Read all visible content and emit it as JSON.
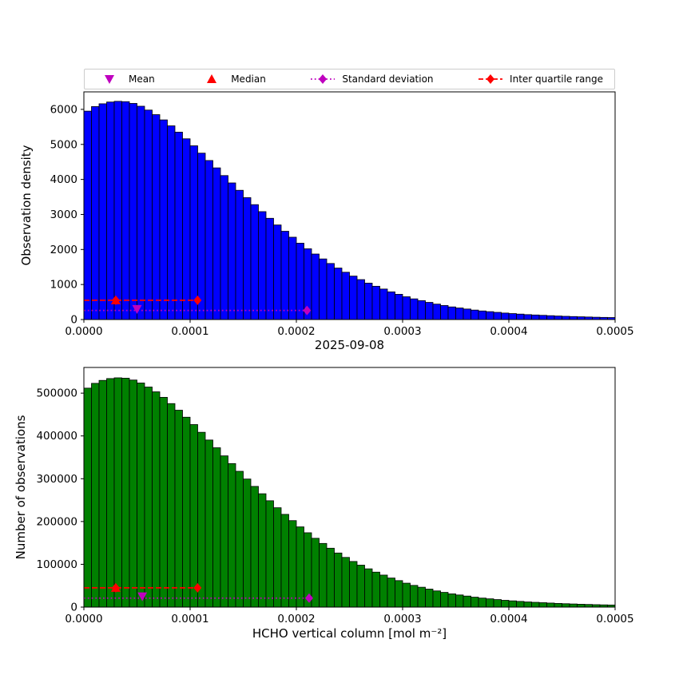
{
  "figure": {
    "date_title": "2025-09-08",
    "background": "#ffffff"
  },
  "colors": {
    "bar_top": "#0000ff",
    "bar_bottom": "#008000",
    "bar_edge": "#000000",
    "mean": "#bf00bf",
    "median": "#ff0000",
    "std": "#bf00bf",
    "iqr": "#ff0000",
    "legend_border": "#cccccc",
    "axis": "#000000"
  },
  "legend": {
    "items": [
      {
        "label": "Mean",
        "marker": "triangle-down",
        "line": "none",
        "color": "#bf00bf"
      },
      {
        "label": "Median",
        "marker": "triangle-up",
        "line": "none",
        "color": "#ff0000"
      },
      {
        "label": "Standard deviation",
        "marker": "diamond",
        "line": "dotted",
        "color": "#bf00bf"
      },
      {
        "label": "Inter quartile range",
        "marker": "diamond",
        "line": "dashed",
        "color": "#ff0000"
      }
    ]
  },
  "chart_data": [
    {
      "type": "bar",
      "name": "observation-density-histogram",
      "ylabel": "Observation density",
      "xlabel": "",
      "xlim": [
        0,
        0.0005
      ],
      "ylim": [
        0,
        6500
      ],
      "bar_color": "#0000ff",
      "edge_color": "#000000",
      "xtick_values": [
        0,
        0.0001,
        0.0002,
        0.0003,
        0.0004,
        0.0005
      ],
      "xtick_labels": [
        "0.0000",
        "0.0001",
        "0.0002",
        "0.0003",
        "0.0004",
        "0.0005"
      ],
      "ytick_values": [
        0,
        1000,
        2000,
        3000,
        4000,
        5000,
        6000
      ],
      "ytick_labels": [
        "0",
        "1000",
        "2000",
        "3000",
        "4000",
        "5000",
        "6000"
      ],
      "values": [
        5950,
        6080,
        6160,
        6210,
        6230,
        6220,
        6170,
        6090,
        5980,
        5850,
        5700,
        5530,
        5350,
        5160,
        4960,
        4750,
        4540,
        4330,
        4110,
        3900,
        3690,
        3480,
        3280,
        3080,
        2890,
        2700,
        2520,
        2350,
        2180,
        2020,
        1870,
        1730,
        1600,
        1470,
        1350,
        1240,
        1140,
        1040,
        950,
        870,
        790,
        720,
        650,
        590,
        540,
        490,
        440,
        400,
        360,
        330,
        300,
        270,
        245,
        225,
        205,
        185,
        170,
        155,
        140,
        130,
        120,
        110,
        100,
        92,
        85,
        78,
        72,
        66,
        61,
        57
      ],
      "markers": {
        "mean": {
          "x": 5e-05,
          "y": 300,
          "color": "#bf00bf"
        },
        "median": {
          "x": 3e-05,
          "y": 550,
          "color": "#ff0000"
        },
        "std": {
          "x_start": 0,
          "x_end": 0.00021,
          "y": 260,
          "marker_x": [
            0.00021
          ],
          "color": "#bf00bf"
        },
        "iqr": {
          "x_start": 0,
          "x_end": 0.000107,
          "y": 550,
          "marker_x": [
            3e-05,
            0.000107
          ],
          "color": "#ff0000"
        }
      }
    },
    {
      "type": "bar",
      "name": "observation-count-histogram",
      "ylabel": "Number of observations",
      "xlabel": "HCHO vertical column [mol m⁻²]",
      "xlim": [
        0,
        0.0005
      ],
      "ylim": [
        0,
        560000
      ],
      "bar_color": "#008000",
      "edge_color": "#000000",
      "xtick_values": [
        0,
        0.0001,
        0.0002,
        0.0003,
        0.0004,
        0.0005
      ],
      "xtick_labels": [
        "0.0000",
        "0.0001",
        "0.0002",
        "0.0003",
        "0.0004",
        "0.0005"
      ],
      "ytick_values": [
        0,
        100000,
        200000,
        300000,
        400000,
        500000
      ],
      "ytick_labels": [
        "0",
        "100000",
        "200000",
        "300000",
        "400000",
        "500000"
      ],
      "values": [
        511700,
        522880,
        529760,
        534060,
        535780,
        534920,
        530620,
        523740,
        514280,
        503100,
        490200,
        475580,
        460100,
        443760,
        426560,
        408500,
        390440,
        372380,
        353460,
        335400,
        317340,
        299280,
        282080,
        264880,
        248540,
        232200,
        216720,
        202100,
        187480,
        173720,
        160820,
        148780,
        137600,
        126420,
        116100,
        106640,
        98040,
        89440,
        81700,
        74820,
        67940,
        61920,
        55900,
        50740,
        46440,
        42140,
        37840,
        34400,
        30960,
        28380,
        25800,
        23220,
        21070,
        19350,
        17630,
        15910,
        14620,
        13330,
        12040,
        11180,
        10320,
        9460,
        8600,
        7912,
        7310,
        6708,
        6192,
        5676,
        5246,
        4902
      ],
      "markers": {
        "mean": {
          "x": 5.5e-05,
          "y": 25000,
          "color": "#bf00bf"
        },
        "median": {
          "x": 3e-05,
          "y": 45000,
          "color": "#ff0000"
        },
        "std": {
          "x_start": 0,
          "x_end": 0.000212,
          "y": 21000,
          "marker_x": [
            0.000212
          ],
          "color": "#bf00bf"
        },
        "iqr": {
          "x_start": 0,
          "x_end": 0.000107,
          "y": 45000,
          "marker_x": [
            3e-05,
            0.000107
          ],
          "color": "#ff0000"
        }
      }
    }
  ]
}
